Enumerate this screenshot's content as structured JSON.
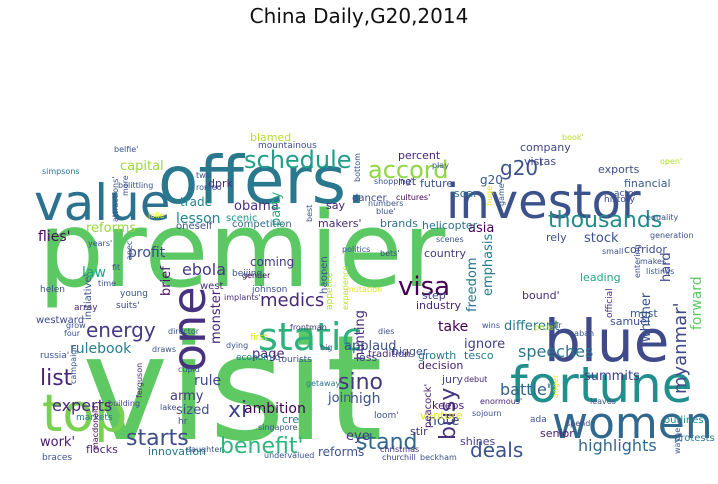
{
  "title": "China Daily,G20,2014",
  "words": [
    {
      "text": "premier",
      "color": "#5cc863"
    },
    {
      "text": "visit",
      "color": "#5ec962"
    },
    {
      "text": "offers.",
      "color": "#2a788e"
    },
    {
      "text": "investor",
      "color": "#3b528b"
    },
    {
      "text": "value",
      "color": "#2c728e"
    },
    {
      "text": "blue",
      "color": "#3e4a89"
    },
    {
      "text": "fortune",
      "color": "#21908d"
    },
    {
      "text": "women",
      "color": "#31688e"
    },
    {
      "text": "top",
      "color": "#7ad151"
    },
    {
      "text": "one",
      "color": "#46327e"
    },
    {
      "text": "static",
      "color": "#2db27d"
    },
    {
      "text": "schedule",
      "color": "#1f9e89"
    },
    {
      "text": "accord",
      "color": "#8fd744"
    },
    {
      "text": "g20'",
      "color": "#3b528b"
    },
    {
      "text": "visa",
      "color": "#440154"
    },
    {
      "text": "thousands",
      "color": "#228c8d"
    },
    {
      "text": "benefit'",
      "color": "#2fb47c"
    },
    {
      "text": "starts",
      "color": "#3e4c8a"
    },
    {
      "text": "sino",
      "color": "#443983"
    },
    {
      "text": "stand",
      "color": "#30698e"
    },
    {
      "text": "deals",
      "color": "#3b528b"
    },
    {
      "text": "list",
      "color": "#482677"
    },
    {
      "text": "energy",
      "color": "#443a83"
    },
    {
      "text": "xi",
      "color": "#414487"
    },
    {
      "text": "myanmar'",
      "color": "#3f4889"
    },
    {
      "text": "busy",
      "color": "#46337e"
    },
    {
      "text": "forward",
      "color": "#5ec962"
    },
    {
      "text": "highlights",
      "color": "#31688e"
    },
    {
      "text": "speeches",
      "color": "#2a788e"
    },
    {
      "text": "battle'",
      "color": "#34618d"
    },
    {
      "text": "summits",
      "color": "#433e85"
    },
    {
      "text": "medics",
      "color": "#482878"
    },
    {
      "text": "ebola",
      "color": "#443983"
    },
    {
      "text": "profit",
      "color": "#3d4d8a"
    },
    {
      "text": "flies'",
      "color": "#46085c"
    },
    {
      "text": "rulebook",
      "color": "#287d8e"
    },
    {
      "text": "experts",
      "color": "#482878"
    },
    {
      "text": "lesson",
      "color": "#25838e"
    },
    {
      "text": "trade",
      "color": "#26828e"
    },
    {
      "text": "obama",
      "color": "#46307e"
    },
    {
      "text": "reforms",
      "color": "#95d840"
    },
    {
      "text": "law",
      "color": "#1fa188"
    },
    {
      "text": "army",
      "color": "#453781"
    },
    {
      "text": "rule",
      "color": "#3e4989"
    },
    {
      "text": "sized",
      "color": "#3e4c8a"
    },
    {
      "text": "ambition",
      "color": "#440154"
    },
    {
      "text": "page",
      "color": "#482475"
    },
    {
      "text": "join",
      "color": "#3a548c"
    },
    {
      "text": "high",
      "color": "#3d4e8a"
    },
    {
      "text": "eye",
      "color": "#453882"
    },
    {
      "text": "note",
      "color": "#3b528b"
    },
    {
      "text": "take",
      "color": "#440154"
    },
    {
      "text": "different",
      "color": "#2a788e"
    },
    {
      "text": "ignore",
      "color": "#424086"
    },
    {
      "text": "applaud",
      "color": "#3b528b"
    },
    {
      "text": "hunting",
      "color": "#472d7b"
    },
    {
      "text": "asia",
      "color": "#440154"
    },
    {
      "text": "freedom",
      "color": "#2a788e"
    },
    {
      "text": "emphasis",
      "color": "#287c8e"
    },
    {
      "text": "whither",
      "color": "#3b528b"
    },
    {
      "text": "hard",
      "color": "#3e4989"
    },
    {
      "text": "stock",
      "color": "#3b528b"
    },
    {
      "text": "monster",
      "color": "#482677"
    },
    {
      "text": "brief",
      "color": "#481467"
    },
    {
      "text": "party",
      "color": "#27ad81"
    },
    {
      "text": "competition",
      "color": "#31688e"
    },
    {
      "text": "makers'",
      "color": "#472c7a"
    },
    {
      "text": "brands",
      "color": "#2c728e"
    },
    {
      "text": "helicopter",
      "color": "#2e6f8e"
    },
    {
      "text": "work'",
      "color": "#481769"
    },
    {
      "text": "innovation",
      "color": "#2a778e"
    },
    {
      "text": "flocks",
      "color": "#472c7a"
    },
    {
      "text": "reforms",
      "color": "#3a548c"
    },
    {
      "text": "shines",
      "color": "#433e85"
    },
    {
      "text": "venture",
      "color": "#e6e419"
    },
    {
      "text": "peacock'",
      "color": "#481a6c"
    },
    {
      "text": "jury",
      "color": "#414487"
    },
    {
      "text": "decision",
      "color": "#481f70"
    },
    {
      "text": "step",
      "color": "#3f4788"
    },
    {
      "text": "growth",
      "color": "#2a788e"
    },
    {
      "text": "industry",
      "color": "#482677"
    },
    {
      "text": "country",
      "color": "#443a83"
    },
    {
      "text": "capital",
      "color": "#9bd93c"
    },
    {
      "text": "dprk",
      "color": "#46307e"
    },
    {
      "text": "g20",
      "color": "#38598c"
    },
    {
      "text": "net",
      "color": "#453882"
    },
    {
      "text": "percent",
      "color": "#482475"
    },
    {
      "text": "company",
      "color": "#3f4788"
    },
    {
      "text": "vistas",
      "color": "#3e4989"
    },
    {
      "text": "exports",
      "color": "#3d4d8a"
    },
    {
      "text": "financial",
      "color": "#365d8d"
    },
    {
      "text": "future",
      "color": "#3b528b"
    },
    {
      "text": "soar",
      "color": "#2c738e"
    },
    {
      "text": "say",
      "color": "#481d6f"
    },
    {
      "text": "blamed",
      "color": "#b5de2b"
    },
    {
      "text": "mountainous",
      "color": "#3b528b"
    },
    {
      "text": "coming",
      "color": "#453781"
    },
    {
      "text": "keeps",
      "color": "#482071"
    },
    {
      "text": "stir",
      "color": "#46337e"
    },
    {
      "text": "tesco",
      "color": "#2a788e"
    },
    {
      "text": "corridor",
      "color": "#3e4c8a"
    },
    {
      "text": "leading",
      "color": "#22a785"
    },
    {
      "text": "rely",
      "color": "#3d4e8a"
    },
    {
      "text": "must",
      "color": "#375b8d"
    },
    {
      "text": "samuel",
      "color": "#3b528b"
    },
    {
      "text": "bound'",
      "color": "#46307e"
    },
    {
      "text": "outlines",
      "color": "#238a8d"
    },
    {
      "text": "protests",
      "color": "#2a788e"
    },
    {
      "text": "senior",
      "color": "#481a6c"
    },
    {
      "text": "loss",
      "color": "#404588"
    },
    {
      "text": "tradition",
      "color": "#482878"
    },
    {
      "text": "bigger",
      "color": "#3b528b"
    },
    {
      "text": "simpsons",
      "color": "#2c728e"
    },
    {
      "text": "romeo",
      "color": "#3b528b"
    },
    {
      "text": "scenic",
      "color": "#20928c"
    },
    {
      "text": "gender",
      "color": "#440154"
    },
    {
      "text": "west",
      "color": "#472d7b"
    },
    {
      "text": "economic",
      "color": "#2a788e"
    },
    {
      "text": "young",
      "color": "#3b528b"
    },
    {
      "text": "suits'",
      "color": "#3f4788"
    },
    {
      "text": "helen",
      "color": "#3b528b"
    },
    {
      "text": "array",
      "color": "#482173"
    },
    {
      "text": "russia'",
      "color": "#3b528b"
    },
    {
      "text": "westward",
      "color": "#3e4c8a"
    },
    {
      "text": "initiative'",
      "color": "#3b528b"
    },
    {
      "text": "markets",
      "color": "#2a788e"
    },
    {
      "text": "macdonald",
      "color": "#440154"
    },
    {
      "text": "braces",
      "color": "#3b528b"
    },
    {
      "text": "building",
      "color": "#404588"
    },
    {
      "text": "daughter",
      "color": "#3b528b"
    },
    {
      "text": "churchill",
      "color": "#404588"
    },
    {
      "text": "beckham",
      "color": "#3b528b"
    },
    {
      "text": "christmas",
      "color": "#46307e"
    },
    {
      "text": "singapore",
      "color": "#3b528b"
    },
    {
      "text": "getaway",
      "color": "#2a788e"
    },
    {
      "text": "frontman",
      "color": "#453882"
    },
    {
      "text": "dying",
      "color": "#3b528b"
    },
    {
      "text": "implants'",
      "color": "#472c7a"
    },
    {
      "text": "johnson",
      "color": "#3b528b"
    },
    {
      "text": "beijing",
      "color": "#3b528b"
    },
    {
      "text": "debut",
      "color": "#482173"
    },
    {
      "text": "enormous'",
      "color": "#482475"
    },
    {
      "text": "sojourn",
      "color": "#3b528b"
    },
    {
      "text": "spend",
      "color": "#3e4989"
    },
    {
      "text": "sabah",
      "color": "#3b528b"
    },
    {
      "text": "official",
      "color": "#46337e"
    },
    {
      "text": "makes",
      "color": "#3b528b"
    },
    {
      "text": "small",
      "color": "#3b528b"
    },
    {
      "text": "listings",
      "color": "#3b528b"
    },
    {
      "text": "history",
      "color": "#3e4c8a"
    },
    {
      "text": "actor",
      "color": "#3b528b"
    },
    {
      "text": "open'",
      "color": "#b5de2b"
    },
    {
      "text": "book'",
      "color": "#b5de2b"
    },
    {
      "text": "cultures'",
      "color": "#440154"
    },
    {
      "text": "play",
      "color": "#3b528b"
    },
    {
      "text": "shopping'",
      "color": "#3b528b"
    },
    {
      "text": "dancer",
      "color": "#3e4c8a"
    },
    {
      "text": "blue'",
      "color": "#3b528b"
    },
    {
      "text": "numbers",
      "color": "#3b528b"
    },
    {
      "text": "bets'",
      "color": "#3b528b"
    },
    {
      "text": "politics",
      "color": "#3b528b"
    },
    {
      "text": "scenes",
      "color": "#3b528b"
    },
    {
      "text": "wins",
      "color": "#3b528b"
    },
    {
      "text": "prize'",
      "color": "#b5de2b"
    },
    {
      "text": "sir",
      "color": "#3b528b"
    },
    {
      "text": "tourists",
      "color": "#3b528b"
    },
    {
      "text": "big",
      "color": "#3b528b"
    },
    {
      "text": "cupid",
      "color": "#3b528b"
    },
    {
      "text": "draws",
      "color": "#3b528b"
    },
    {
      "text": "campaign",
      "color": "#3b528b"
    },
    {
      "text": "grow",
      "color": "#3b528b"
    },
    {
      "text": "four",
      "color": "#3b528b"
    },
    {
      "text": "belfie'",
      "color": "#3b528b"
    },
    {
      "text": "bottom",
      "color": "#3b528b"
    },
    {
      "text": "leaves",
      "color": "#3b528b"
    },
    {
      "text": "ferguson",
      "color": "#472d7b"
    },
    {
      "text": "director",
      "color": "#3b528b"
    },
    {
      "text": "first",
      "color": "#e6e419"
    },
    {
      "text": "dies",
      "color": "#3b528b"
    },
    {
      "text": "cre",
      "color": "#2a788e"
    },
    {
      "text": "hr",
      "color": "#3b528b"
    },
    {
      "text": "loom'",
      "color": "#3b528b"
    },
    {
      "text": "ada",
      "color": "#3b528b"
    },
    {
      "text": "belittling",
      "color": "#3b528b"
    },
    {
      "text": "time",
      "color": "#3b528b"
    },
    {
      "text": "fit",
      "color": "#3b528b"
    },
    {
      "text": "more",
      "color": "#3b528b"
    },
    {
      "text": "best",
      "color": "#3b528b"
    },
    {
      "text": "two",
      "color": "#3b528b"
    },
    {
      "text": "jolie",
      "color": "#e6e419"
    },
    {
      "text": "years'",
      "color": "#3b528b"
    },
    {
      "text": "apec",
      "color": "#3b528b"
    },
    {
      "text": "attractions'",
      "color": "#3b528b"
    },
    {
      "text": "generation",
      "color": "#3b528b"
    },
    {
      "text": "lake",
      "color": "#3b528b"
    },
    {
      "text": "game",
      "color": "#3b528b"
    },
    {
      "text": "equality",
      "color": "#3b528b"
    },
    {
      "text": "wayne",
      "color": "#3b528b"
    },
    {
      "text": "anger",
      "color": "#e6e419"
    },
    {
      "text": "huge",
      "color": "#e6e419"
    },
    {
      "text": "happen",
      "color": "#3b528b"
    },
    {
      "text": "appetite'",
      "color": "#b5de2b"
    },
    {
      "text": "experience",
      "color": "#b5de2b"
    },
    {
      "text": "undervalued",
      "color": "#3b528b"
    },
    {
      "text": "mutation",
      "color": "#e6e419"
    },
    {
      "text": "entering",
      "color": "#3b528b"
    },
    {
      "text": "oneself",
      "color": "#3b528b"
    },
    {
      "text": "connect",
      "color": "#3b528b"
    }
  ]
}
